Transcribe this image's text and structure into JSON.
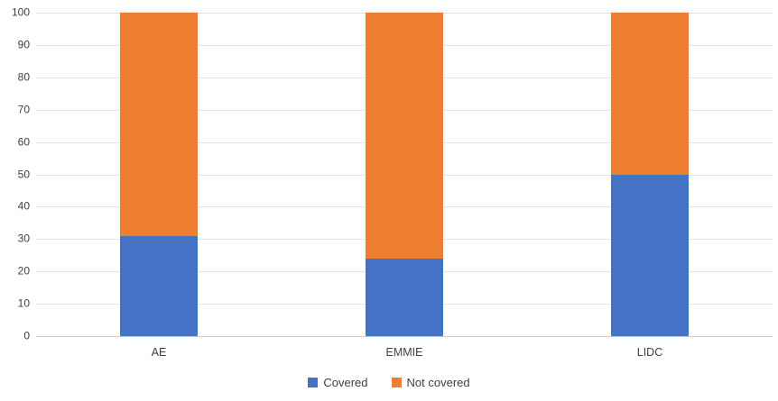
{
  "chart_data": {
    "type": "bar",
    "variant": "stacked-column",
    "title": "",
    "xlabel": "",
    "ylabel": "",
    "categories": [
      "AE",
      "EMMIE",
      "LIDC"
    ],
    "series": [
      {
        "name": "Covered",
        "color": "#4472c4",
        "values": [
          31,
          24,
          50
        ]
      },
      {
        "name": "Not covered",
        "color": "#ed7d31",
        "values": [
          69,
          76,
          50
        ]
      }
    ],
    "ylim": [
      0,
      100
    ],
    "ytick_step": 10,
    "ytick_labels": [
      "0",
      "10",
      "20",
      "30",
      "40",
      "50",
      "60",
      "70",
      "80",
      "90",
      "100"
    ],
    "grid": true,
    "gridline_color": "#e2e2e2",
    "axis_line_color": "#c9c9c9",
    "tick_label_color": "#404040",
    "legend_position": "bottom-center",
    "background_color": "#ffffff"
  }
}
